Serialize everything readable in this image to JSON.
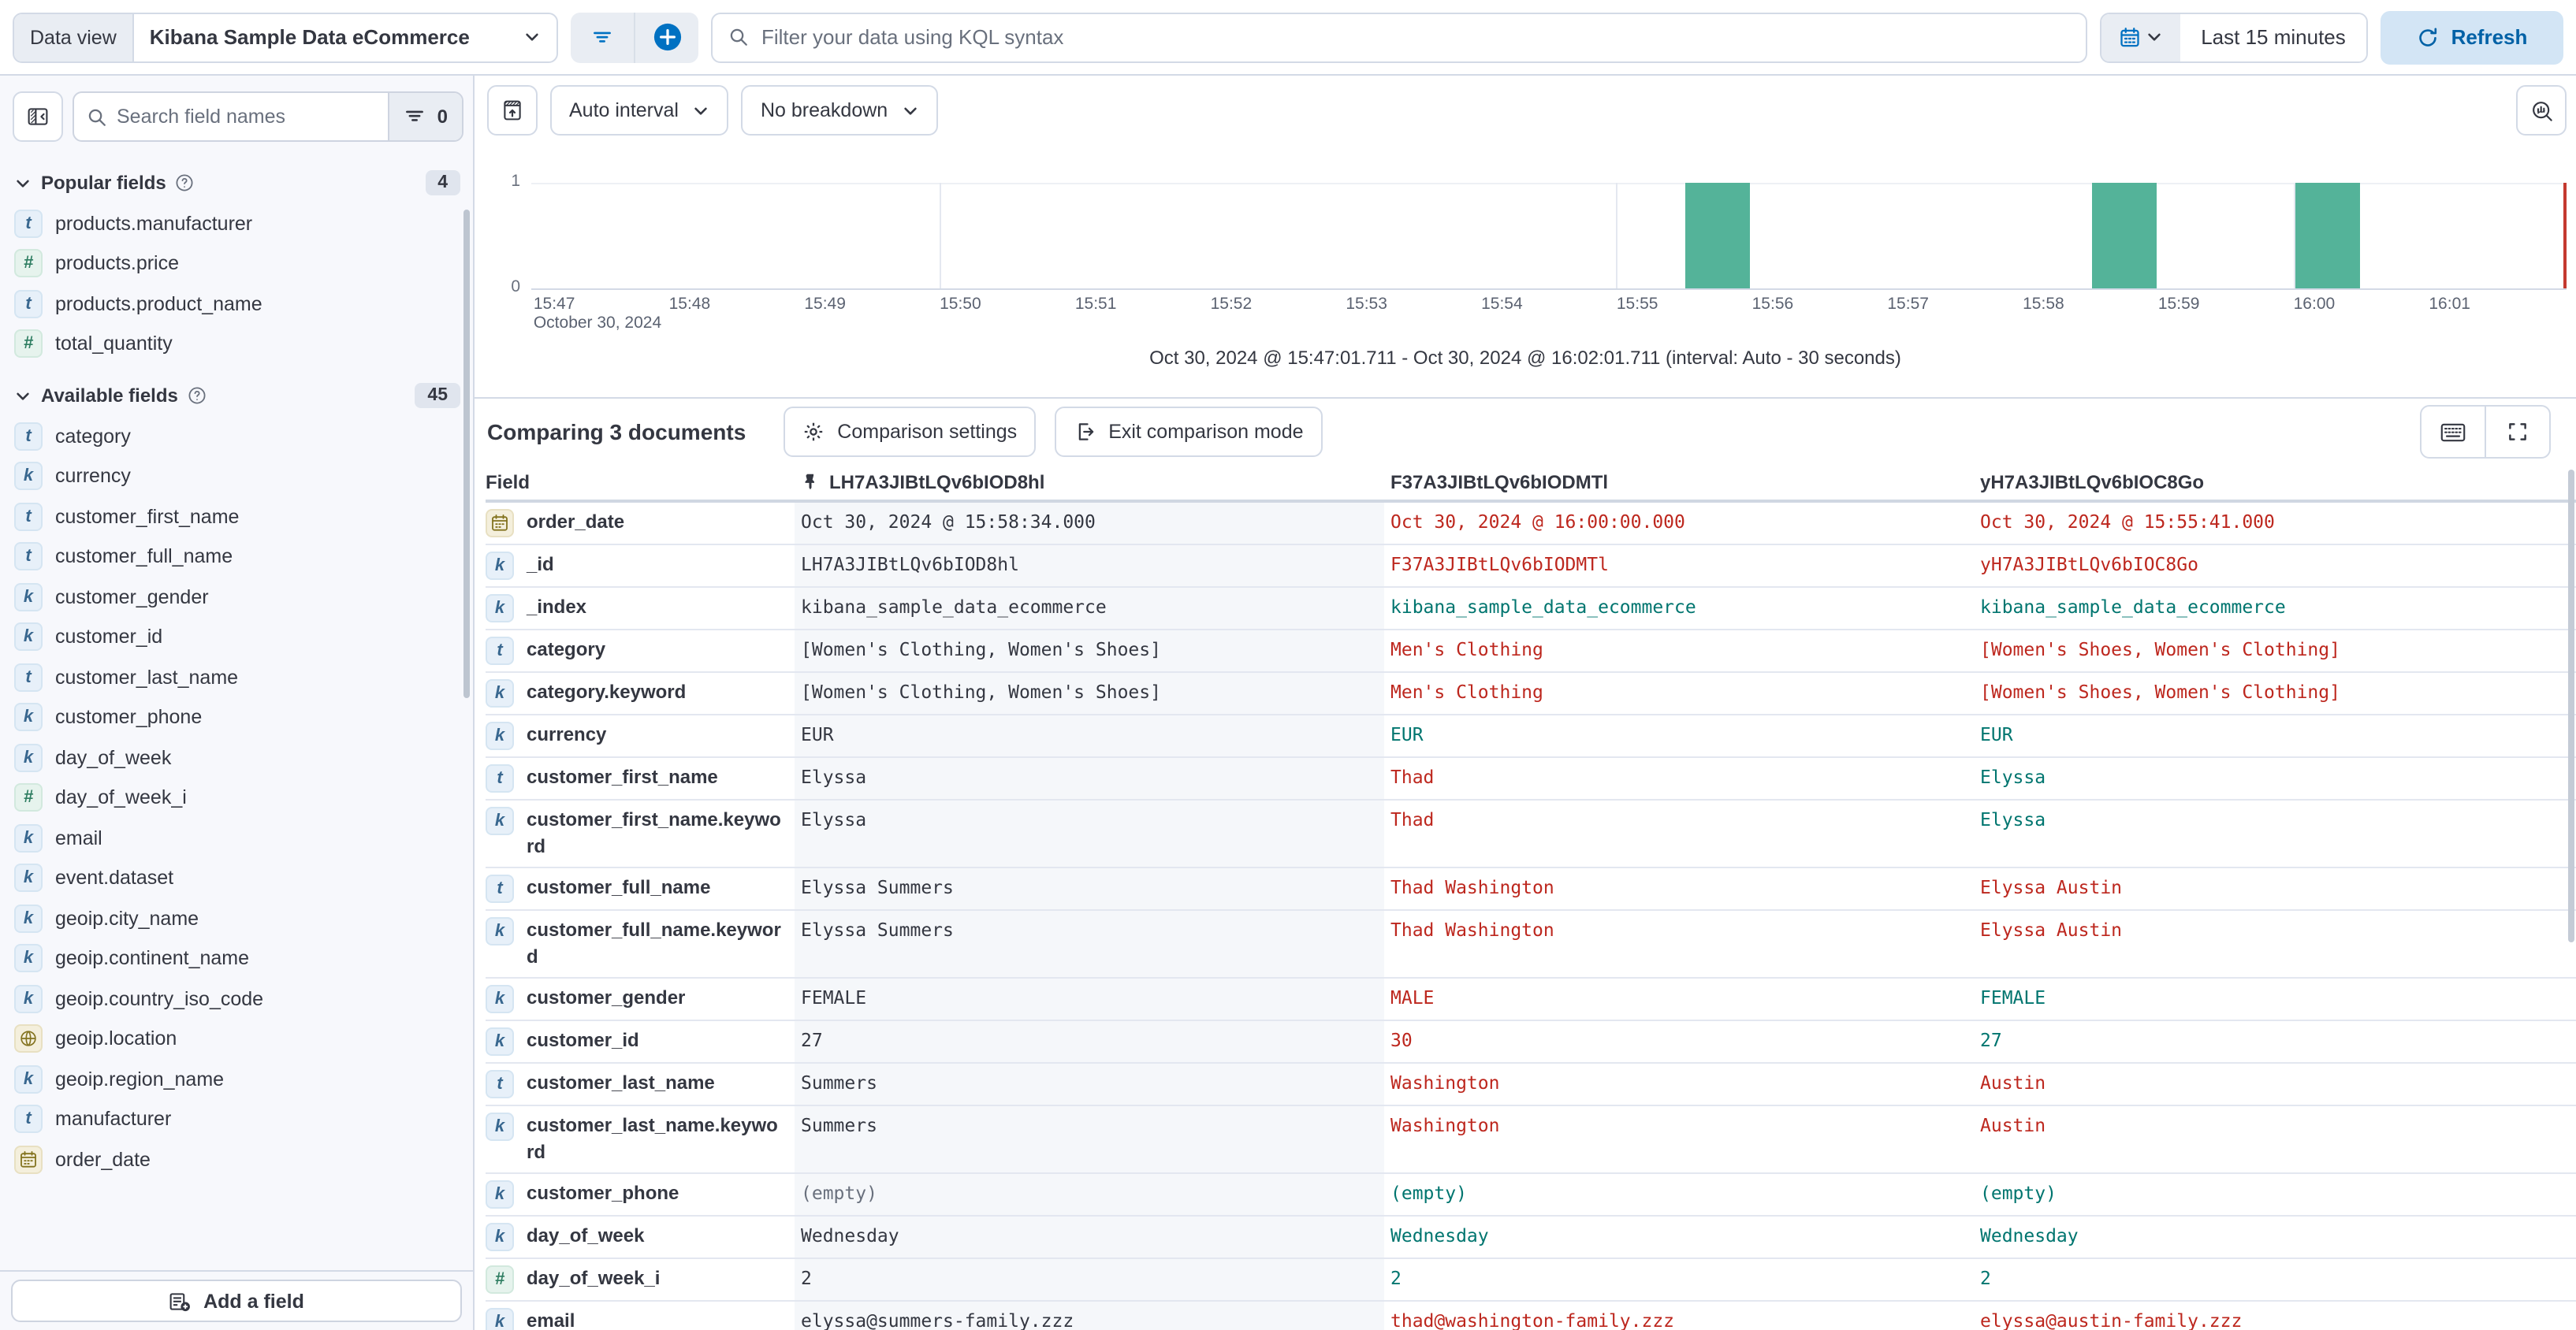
{
  "topbar": {
    "data_view_label": "Data view",
    "data_view_value": "Kibana Sample Data eCommerce",
    "kql_placeholder": "Filter your data using KQL syntax",
    "time_range": "Last 15 minutes",
    "refresh_label": "Refresh"
  },
  "sidebar": {
    "search_placeholder": "Search field names",
    "filter_count": "0",
    "popular": {
      "label": "Popular fields",
      "count": "4",
      "items": [
        {
          "name": "products.manufacturer",
          "type": "t"
        },
        {
          "name": "products.price",
          "type": "num"
        },
        {
          "name": "products.product_name",
          "type": "t"
        },
        {
          "name": "total_quantity",
          "type": "num"
        }
      ]
    },
    "available": {
      "label": "Available fields",
      "count": "45",
      "items": [
        {
          "name": "category",
          "type": "t"
        },
        {
          "name": "currency",
          "type": "k"
        },
        {
          "name": "customer_first_name",
          "type": "t"
        },
        {
          "name": "customer_full_name",
          "type": "t"
        },
        {
          "name": "customer_gender",
          "type": "k"
        },
        {
          "name": "customer_id",
          "type": "k"
        },
        {
          "name": "customer_last_name",
          "type": "t"
        },
        {
          "name": "customer_phone",
          "type": "k"
        },
        {
          "name": "day_of_week",
          "type": "k"
        },
        {
          "name": "day_of_week_i",
          "type": "num"
        },
        {
          "name": "email",
          "type": "k"
        },
        {
          "name": "event.dataset",
          "type": "k"
        },
        {
          "name": "geoip.city_name",
          "type": "k"
        },
        {
          "name": "geoip.continent_name",
          "type": "k"
        },
        {
          "name": "geoip.country_iso_code",
          "type": "k"
        },
        {
          "name": "geoip.location",
          "type": "geo"
        },
        {
          "name": "geoip.region_name",
          "type": "k"
        },
        {
          "name": "manufacturer",
          "type": "t"
        },
        {
          "name": "order_date",
          "type": "date"
        }
      ]
    },
    "add_field_label": "Add a field"
  },
  "chart": {
    "interval_label": "Auto interval",
    "breakdown_label": "No breakdown",
    "caption": "Oct 30, 2024 @ 15:47:01.711 - Oct 30, 2024 @ 16:02:01.711 (interval: Auto - 30 seconds)",
    "chart_data": {
      "type": "bar",
      "title": "Document count over time",
      "x_domain": [
        "15:46:59",
        "16:02:01"
      ],
      "x_ticks": [
        "15:47",
        "15:48",
        "15:49",
        "15:50",
        "15:51",
        "15:52",
        "15:53",
        "15:54",
        "15:55",
        "15:56",
        "15:57",
        "15:58",
        "15:59",
        "16:00",
        "16:01"
      ],
      "x_secondary_label": "October 30, 2024",
      "y_ticks": [
        "1",
        "0"
      ],
      "ylim": [
        0,
        1
      ],
      "interval_seconds": 30,
      "bars": [
        {
          "time": "15:55:30",
          "count": 1
        },
        {
          "time": "15:58:30",
          "count": 1
        },
        {
          "time": "16:00:00",
          "count": 1
        }
      ],
      "gridlines": [
        "15:50:00",
        "15:55:00",
        "16:00:00"
      ],
      "current_time_marker": "16:02:00",
      "bar_color": "#54b399",
      "marker_color": "#c4392f",
      "grid": true,
      "legend": false
    }
  },
  "comparison": {
    "title": "Comparing 3 documents",
    "settings_label": "Comparison settings",
    "exit_label": "Exit comparison mode"
  },
  "table": {
    "field_header": "Field",
    "columns": [
      "LH7A3JIBtLQv6bIOD8hl",
      "F37A3JIBtLQv6bIODMTl",
      "yH7A3JIBtLQv6bIOC8Go"
    ],
    "rows": [
      {
        "field": "order_date",
        "type": "date",
        "values": [
          {
            "text": "Oct 30, 2024 @ 15:58:34.000",
            "status": "base"
          },
          {
            "text": "Oct 30, 2024 @ 16:00:00.000",
            "status": "diff"
          },
          {
            "text": "Oct 30, 2024 @ 15:55:41.000",
            "status": "diff"
          }
        ]
      },
      {
        "field": "_id",
        "type": "k",
        "values": [
          {
            "text": "LH7A3JIBtLQv6bIOD8hl",
            "status": "base"
          },
          {
            "text": "F37A3JIBtLQv6bIODMTl",
            "status": "diff"
          },
          {
            "text": "yH7A3JIBtLQv6bIOC8Go",
            "status": "diff"
          }
        ]
      },
      {
        "field": "_index",
        "type": "k",
        "values": [
          {
            "text": "kibana_sample_data_ecommerce",
            "status": "base"
          },
          {
            "text": "kibana_sample_data_ecommerce",
            "status": "match"
          },
          {
            "text": "kibana_sample_data_ecommerce",
            "status": "match"
          }
        ]
      },
      {
        "field": "category",
        "type": "t",
        "values": [
          {
            "text": "[Women's Clothing, Women's Shoes]",
            "status": "base"
          },
          {
            "text": "Men's Clothing",
            "status": "diff"
          },
          {
            "text": "[Women's Shoes, Women's Clothing]",
            "status": "diff"
          }
        ]
      },
      {
        "field": "category.keyword",
        "type": "k",
        "values": [
          {
            "text": "[Women's Clothing, Women's Shoes]",
            "status": "base"
          },
          {
            "text": "Men's Clothing",
            "status": "diff"
          },
          {
            "text": "[Women's Shoes, Women's Clothing]",
            "status": "diff"
          }
        ]
      },
      {
        "field": "currency",
        "type": "k",
        "values": [
          {
            "text": "EUR",
            "status": "base"
          },
          {
            "text": "EUR",
            "status": "match"
          },
          {
            "text": "EUR",
            "status": "match"
          }
        ]
      },
      {
        "field": "customer_first_name",
        "type": "t",
        "values": [
          {
            "text": "Elyssa",
            "status": "base"
          },
          {
            "text": "Thad",
            "status": "diff"
          },
          {
            "text": "Elyssa",
            "status": "match"
          }
        ]
      },
      {
        "field": "customer_first_name.keyword",
        "type": "k",
        "values": [
          {
            "text": "Elyssa",
            "status": "base"
          },
          {
            "text": "Thad",
            "status": "diff"
          },
          {
            "text": "Elyssa",
            "status": "match"
          }
        ]
      },
      {
        "field": "customer_full_name",
        "type": "t",
        "values": [
          {
            "text": "Elyssa Summers",
            "status": "base"
          },
          {
            "text": "Thad Washington",
            "status": "diff"
          },
          {
            "text": "Elyssa Austin",
            "status": "diff"
          }
        ]
      },
      {
        "field": "customer_full_name.keyword",
        "type": "k",
        "values": [
          {
            "text": "Elyssa Summers",
            "status": "base"
          },
          {
            "text": "Thad Washington",
            "status": "diff"
          },
          {
            "text": "Elyssa Austin",
            "status": "diff"
          }
        ]
      },
      {
        "field": "customer_gender",
        "type": "k",
        "values": [
          {
            "text": "FEMALE",
            "status": "base"
          },
          {
            "text": "MALE",
            "status": "diff"
          },
          {
            "text": "FEMALE",
            "status": "match"
          }
        ]
      },
      {
        "field": "customer_id",
        "type": "k",
        "values": [
          {
            "text": "27",
            "status": "base"
          },
          {
            "text": "30",
            "status": "diff"
          },
          {
            "text": "27",
            "status": "match"
          }
        ]
      },
      {
        "field": "customer_last_name",
        "type": "t",
        "values": [
          {
            "text": "Summers",
            "status": "base"
          },
          {
            "text": "Washington",
            "status": "diff"
          },
          {
            "text": "Austin",
            "status": "diff"
          }
        ]
      },
      {
        "field": "customer_last_name.keyword",
        "type": "k",
        "values": [
          {
            "text": "Summers",
            "status": "base"
          },
          {
            "text": "Washington",
            "status": "diff"
          },
          {
            "text": "Austin",
            "status": "diff"
          }
        ]
      },
      {
        "field": "customer_phone",
        "type": "k",
        "values": [
          {
            "text": "(empty)",
            "status": "empty"
          },
          {
            "text": "(empty)",
            "status": "match"
          },
          {
            "text": "(empty)",
            "status": "match"
          }
        ]
      },
      {
        "field": "day_of_week",
        "type": "k",
        "values": [
          {
            "text": "Wednesday",
            "status": "base"
          },
          {
            "text": "Wednesday",
            "status": "match"
          },
          {
            "text": "Wednesday",
            "status": "match"
          }
        ]
      },
      {
        "field": "day_of_week_i",
        "type": "num",
        "values": [
          {
            "text": "2",
            "status": "base"
          },
          {
            "text": "2",
            "status": "match"
          },
          {
            "text": "2",
            "status": "match"
          }
        ]
      },
      {
        "field": "email",
        "type": "k",
        "values": [
          {
            "text": "elyssa@summers-family.zzz",
            "status": "base"
          },
          {
            "text": "thad@washington-family.zzz",
            "status": "diff"
          },
          {
            "text": "elyssa@austin-family.zzz",
            "status": "diff"
          }
        ]
      }
    ]
  },
  "colors": {
    "primary": "#0071c2",
    "primary_text": "#0061a6",
    "refresh_bg": "#d3e5f5",
    "diff_red": "#bd271e",
    "match_teal": "#00756f",
    "bar_green": "#54b399",
    "marker_red": "#c4392f"
  }
}
